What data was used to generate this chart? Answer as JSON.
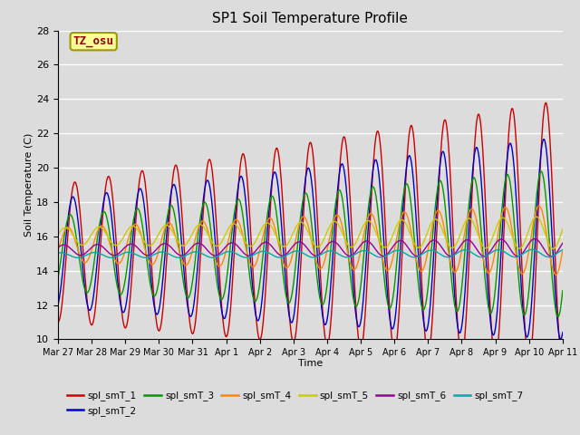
{
  "title": "SP1 Soil Temperature Profile",
  "xlabel": "Time",
  "ylabel": "Soil Temperature (C)",
  "ylim": [
    10,
    28
  ],
  "background_color": "#dcdcdc",
  "annotation_text": "TZ_osu",
  "annotation_color": "#990000",
  "annotation_bg": "#ffff99",
  "annotation_border": "#999900",
  "series": [
    {
      "label": "spl_smT_1",
      "color": "#cc0000"
    },
    {
      "label": "spl_smT_2",
      "color": "#0000cc"
    },
    {
      "label": "spl_smT_3",
      "color": "#009900"
    },
    {
      "label": "spl_smT_4",
      "color": "#ff8800"
    },
    {
      "label": "spl_smT_5",
      "color": "#cccc00"
    },
    {
      "label": "spl_smT_6",
      "color": "#990099"
    },
    {
      "label": "spl_smT_7",
      "color": "#00aaaa"
    }
  ],
  "xtick_labels": [
    "Mar 27",
    "Mar 28",
    "Mar 29",
    "Mar 30",
    "Mar 31",
    "Apr 1",
    "Apr 2",
    "Apr 3",
    "Apr 4",
    "Apr 5",
    "Apr 6",
    "Apr 7",
    "Apr 8",
    "Apr 9",
    "Apr 10",
    "Apr 11"
  ],
  "ytick_values": [
    10,
    12,
    14,
    16,
    18,
    20,
    22,
    24,
    26,
    28
  ],
  "n_days": 15,
  "n_points": 1500,
  "series_params": [
    {
      "base": 15.0,
      "trend": 0.08,
      "amp0": 4.0,
      "amp_growth": 0.25,
      "phase": -1.5708
    },
    {
      "base": 15.0,
      "trend": 0.06,
      "amp0": 3.2,
      "amp_growth": 0.18,
      "phase": -1.2
    },
    {
      "base": 15.0,
      "trend": 0.04,
      "amp0": 2.2,
      "amp_growth": 0.14,
      "phase": -0.7
    },
    {
      "base": 15.5,
      "trend": 0.02,
      "amp0": 1.0,
      "amp_growth": 0.07,
      "phase": -0.3
    },
    {
      "base": 16.0,
      "trend": 0.015,
      "amp0": 0.5,
      "amp_growth": 0.03,
      "phase": 0.2
    },
    {
      "base": 15.2,
      "trend": 0.01,
      "amp0": 0.3,
      "amp_growth": 0.015,
      "phase": 0.5
    },
    {
      "base": 14.9,
      "trend": 0.008,
      "amp0": 0.15,
      "amp_growth": 0.005,
      "phase": 1.0
    }
  ]
}
